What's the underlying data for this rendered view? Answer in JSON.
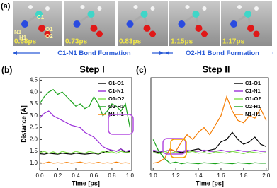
{
  "panel_a": {
    "label": "(a)",
    "atoms": [
      "N1",
      "C1",
      "H1",
      "O1",
      "O2"
    ],
    "times": [
      "0.68ps",
      "0.73ps",
      "0.83ps",
      "1.15ps",
      "1.17ps"
    ],
    "phases": [
      "C1-N1 Bond Formation",
      "O2-H1 Bond Formation"
    ]
  },
  "chart_data": [
    {
      "type": "line",
      "panel": "(b)",
      "title": "Step I",
      "xlabel": "Time [ps]",
      "ylabel": "Distance [Å]",
      "x": [
        0,
        0.05,
        0.1,
        0.15,
        0.2,
        0.25,
        0.3,
        0.35,
        0.4,
        0.45,
        0.5,
        0.55,
        0.6,
        0.65,
        0.7,
        0.75,
        0.8,
        0.85,
        0.9,
        0.95,
        1.0
      ],
      "series": [
        {
          "name": "C1-O1",
          "color": "#000000",
          "values": [
            1.4,
            1.38,
            1.42,
            1.4,
            1.38,
            1.42,
            1.4,
            1.38,
            1.42,
            1.4,
            1.38,
            1.4,
            1.42,
            1.38,
            1.45,
            1.5,
            1.55,
            1.5,
            1.6,
            1.45,
            1.5
          ]
        },
        {
          "name": "C1-N1",
          "color": "#9b30d9",
          "values": [
            2.9,
            3.1,
            3.2,
            3.0,
            2.9,
            2.8,
            2.7,
            2.6,
            2.55,
            2.5,
            2.3,
            2.2,
            2.1,
            1.9,
            1.7,
            1.6,
            1.55,
            1.5,
            1.6,
            1.5,
            1.55
          ]
        },
        {
          "name": "O1-O2",
          "color": "#7fe04a",
          "values": [
            1.45,
            1.5,
            1.42,
            1.48,
            1.4,
            1.5,
            1.45,
            1.42,
            1.5,
            1.45,
            1.42,
            1.5,
            1.45,
            1.4,
            1.5,
            1.45,
            1.48,
            1.42,
            1.5,
            1.45,
            1.45
          ]
        },
        {
          "name": "O2-H1",
          "color": "#1aa31a",
          "values": [
            3.5,
            3.8,
            4.0,
            4.1,
            3.9,
            4.0,
            3.8,
            3.6,
            3.4,
            3.5,
            3.3,
            3.4,
            3.8,
            3.5,
            3.0,
            3.2,
            3.5,
            3.4,
            3.2,
            3.5,
            2.5
          ]
        },
        {
          "name": "N1-H1",
          "color": "#f57c00",
          "values": [
            1.02,
            1.0,
            1.05,
            1.0,
            1.02,
            1.0,
            1.04,
            1.0,
            1.02,
            1.05,
            1.0,
            1.02,
            1.0,
            1.04,
            1.0,
            1.02,
            1.0,
            1.05,
            1.0,
            1.02,
            1.0
          ]
        }
      ],
      "xlim": [
        0,
        1.02
      ],
      "ylim": [
        0.7,
        4.6
      ],
      "xticks": [
        {
          "value": 0,
          "label": "0.0"
        },
        0.2,
        0.4,
        0.6,
        0.8,
        {
          "value": 1,
          "label": "1.0"
        }
      ],
      "yticks": [
        {
          "value": 1,
          "label": "1.0"
        },
        1.5,
        {
          "value": 2,
          "label": "2.0"
        },
        2.5,
        {
          "value": 3,
          "label": "3.0"
        },
        3.5,
        {
          "value": 4,
          "label": "4.0"
        },
        4.5
      ],
      "legend": "upper right"
    },
    {
      "type": "line",
      "panel": "(c)",
      "title": "Step II",
      "xlabel": "Time [ps]",
      "x": [
        1.0,
        1.05,
        1.1,
        1.15,
        1.2,
        1.25,
        1.3,
        1.35,
        1.4,
        1.45,
        1.5,
        1.55,
        1.6,
        1.65,
        1.7,
        1.75,
        1.8,
        1.85,
        1.9,
        1.95,
        2.0
      ],
      "series": [
        {
          "name": "C1-O1",
          "color": "#000000",
          "values": [
            1.5,
            1.45,
            1.5,
            1.55,
            1.5,
            1.45,
            1.5,
            1.55,
            1.6,
            1.5,
            1.55,
            1.6,
            1.9,
            2.0,
            2.3,
            2.0,
            1.8,
            1.9,
            2.1,
            1.8,
            1.7
          ]
        },
        {
          "name": "C1-N1",
          "color": "#9b30d9",
          "values": [
            1.55,
            1.5,
            1.5,
            1.55,
            1.5,
            1.5,
            1.55,
            1.5,
            1.5,
            1.55,
            1.5,
            1.5,
            1.55,
            1.5,
            1.5,
            1.55,
            1.5,
            1.5,
            1.55,
            1.5,
            1.5
          ]
        },
        {
          "name": "O1-O2",
          "color": "#7fe04a",
          "values": [
            1.45,
            1.4,
            1.5,
            1.42,
            1.48,
            1.4,
            1.45,
            1.5,
            1.42,
            1.45,
            1.4,
            1.48,
            1.45,
            1.42,
            1.5,
            1.45,
            1.4,
            1.48,
            1.45,
            1.42,
            1.45
          ]
        },
        {
          "name": "O2-H1",
          "color": "#1aa31a",
          "values": [
            2.0,
            1.5,
            1.2,
            1.0,
            1.05,
            0.98,
            1.02,
            1.0,
            0.98,
            1.02,
            1.0,
            0.98,
            1.02,
            1.0,
            0.98,
            1.02,
            1.0,
            0.98,
            1.02,
            1.0,
            1.0
          ]
        },
        {
          "name": "N1-H1",
          "color": "#f57c00",
          "values": [
            1.0,
            1.05,
            1.2,
            1.6,
            1.5,
            1.9,
            2.2,
            2.0,
            2.3,
            2.5,
            2.2,
            2.6,
            3.0,
            3.8,
            3.2,
            2.8,
            2.7,
            3.0,
            2.9,
            3.3,
            2.8
          ]
        }
      ],
      "xlim": [
        0.98,
        2.02
      ],
      "ylim": [
        0.7,
        4.6
      ],
      "xticks": [
        {
          "value": 1,
          "label": "1.0"
        },
        1.2,
        1.4,
        1.6,
        1.8,
        {
          "value": 2,
          "label": "2.0"
        }
      ],
      "legend": "upper right"
    }
  ]
}
